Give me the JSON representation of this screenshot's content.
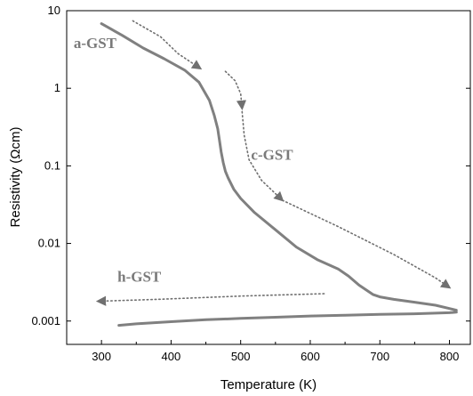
{
  "chart_data": {
    "type": "line",
    "title": "",
    "xlabel": "Temperature (K)",
    "ylabel": "Resistivity (Ωcm)",
    "xlim": [
      250,
      830
    ],
    "ylim": [
      0.0005,
      10
    ],
    "y_scale": "log",
    "grid": false,
    "colors": {
      "curve": "#808080",
      "arrow": "#707070",
      "annotation": "#7a7a7a"
    },
    "x_ticks": [
      {
        "value": 300,
        "label": "300"
      },
      {
        "value": 400,
        "label": "400"
      },
      {
        "value": 500,
        "label": "500"
      },
      {
        "value": 600,
        "label": "600"
      },
      {
        "value": 700,
        "label": "700"
      },
      {
        "value": 800,
        "label": "800"
      }
    ],
    "y_ticks": [
      {
        "value": 10,
        "label": "10"
      },
      {
        "value": 1,
        "label": "1"
      },
      {
        "value": 0.1,
        "label": "0.1"
      },
      {
        "value": 0.01,
        "label": "0.01"
      },
      {
        "value": 0.001,
        "label": "0.001"
      }
    ],
    "series": [
      {
        "id": "heating",
        "x": [
          300,
          330,
          360,
          390,
          420,
          440,
          455,
          462,
          467,
          470,
          472,
          475,
          478,
          482,
          490,
          500,
          520,
          550,
          580,
          610,
          640,
          655,
          670,
          690,
          700,
          720,
          750,
          780,
          800,
          810
        ],
        "y": [
          6.8,
          4.8,
          3.3,
          2.4,
          1.7,
          1.2,
          0.7,
          0.45,
          0.3,
          0.2,
          0.15,
          0.11,
          0.085,
          0.07,
          0.05,
          0.038,
          0.025,
          0.015,
          0.009,
          0.0062,
          0.0047,
          0.0038,
          0.0029,
          0.0022,
          0.00205,
          0.0019,
          0.00175,
          0.0016,
          0.00145,
          0.00138
        ]
      },
      {
        "id": "cooling",
        "x": [
          325,
          350,
          400,
          450,
          500,
          550,
          600,
          650,
          700,
          750,
          800,
          810
        ],
        "y": [
          0.00088,
          0.00092,
          0.00098,
          0.00104,
          0.00108,
          0.00112,
          0.00116,
          0.00119,
          0.00122,
          0.00124,
          0.00128,
          0.0013
        ]
      }
    ],
    "arrows": [
      {
        "x": [
          345,
          385,
          410,
          442
        ],
        "y": [
          7.4,
          4.6,
          2.8,
          1.8
        ]
      },
      {
        "x": [
          478,
          492,
          500,
          502
        ],
        "y": [
          1.65,
          1.25,
          0.85,
          0.55
        ]
      },
      {
        "x": [
          502,
          505,
          512,
          530,
          560
        ],
        "y": [
          0.5,
          0.25,
          0.12,
          0.065,
          0.036
        ]
      },
      {
        "x": [
          560,
          640,
          720,
          780,
          800
        ],
        "y": [
          0.036,
          0.0165,
          0.0072,
          0.0036,
          0.0027
        ]
      },
      {
        "x": [
          620,
          500,
          380,
          295
        ],
        "y": [
          0.00225,
          0.0021,
          0.0019,
          0.0018
        ]
      }
    ],
    "annotations": [
      {
        "text": "a-GST",
        "x": 260,
        "y": 3.3
      },
      {
        "text": "c-GST",
        "x": 515,
        "y": 0.12
      },
      {
        "text": "h-GST",
        "x": 323,
        "y": 0.0032
      }
    ]
  }
}
